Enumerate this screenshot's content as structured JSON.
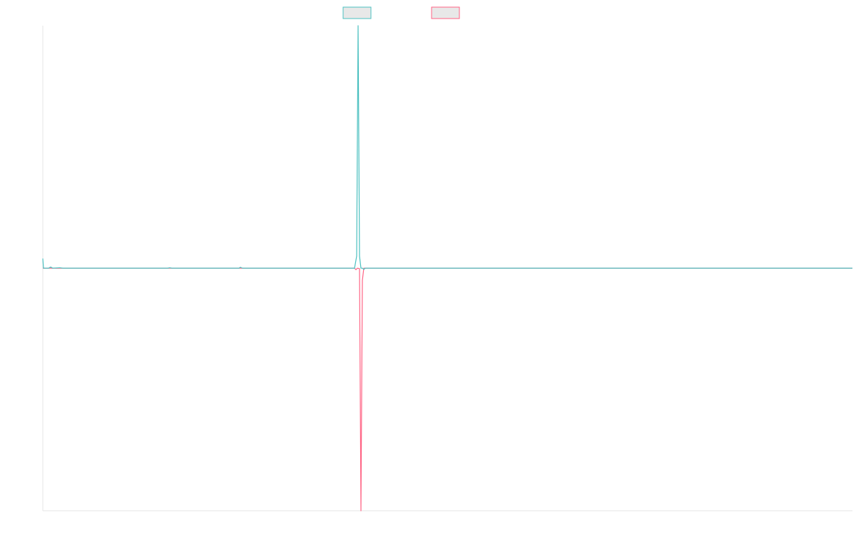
{
  "chart_data": {
    "type": "line",
    "title": "",
    "xlabel": "",
    "ylabel": "",
    "x_range": [
      0,
      1135
    ],
    "ylim": [
      -1,
      1
    ],
    "grid": false,
    "legend_placement": "top-center",
    "series": [
      {
        "color": "#4bc0c0",
        "points": [
          [
            0,
            0.04
          ],
          [
            1,
            0.0
          ],
          [
            8,
            0.0
          ],
          [
            11,
            0.005
          ],
          [
            14,
            0.0
          ],
          [
            24,
            0.002
          ],
          [
            28,
            0.0
          ],
          [
            175,
            0.0
          ],
          [
            178,
            0.002
          ],
          [
            181,
            0.0
          ],
          [
            275,
            0.0
          ],
          [
            277,
            0.004
          ],
          [
            280,
            0.0
          ],
          [
            437,
            0.0
          ],
          [
            440,
            0.05
          ],
          [
            442,
            1.0
          ],
          [
            444,
            0.05
          ],
          [
            446,
            0.0
          ],
          [
            448,
            0.0
          ],
          [
            450,
            -0.005
          ],
          [
            452,
            0.0
          ],
          [
            1135,
            0.0
          ]
        ]
      },
      {
        "color": "#ff6384",
        "points": [
          [
            0,
            0.0
          ],
          [
            437,
            0.0
          ],
          [
            439,
            -0.006
          ],
          [
            441,
            0.0
          ],
          [
            444,
            -0.002
          ],
          [
            446,
            -1.0
          ],
          [
            448,
            -0.05
          ],
          [
            450,
            0.0
          ],
          [
            1135,
            0.0
          ]
        ]
      }
    ]
  }
}
